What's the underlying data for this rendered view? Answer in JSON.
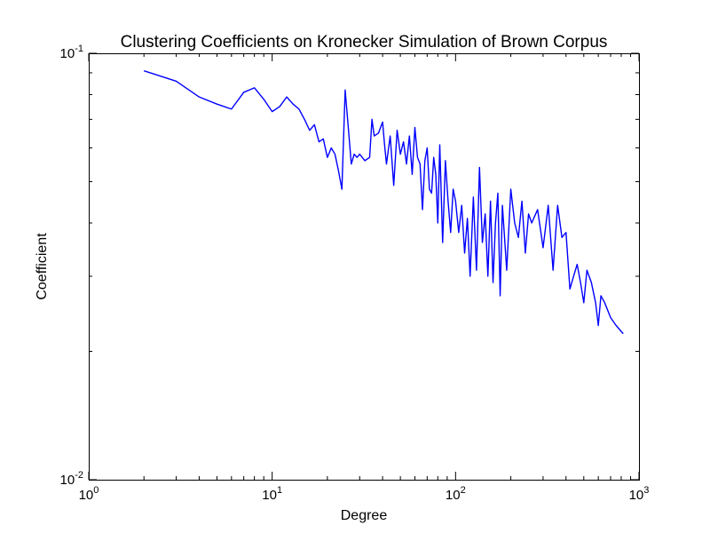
{
  "chart_data": {
    "type": "line",
    "title": "Clustering Coefficients on Kronecker Simulation of Brown Corpus",
    "xlabel": "Degree",
    "ylabel": "Coefficient",
    "xscale": "log",
    "yscale": "log",
    "xlim": [
      1,
      1000
    ],
    "ylim": [
      0.01,
      0.1
    ],
    "xticks": [
      {
        "value": 1,
        "base": "10",
        "exp": "0"
      },
      {
        "value": 10,
        "base": "10",
        "exp": "1"
      },
      {
        "value": 100,
        "base": "10",
        "exp": "2"
      },
      {
        "value": 1000,
        "base": "10",
        "exp": "3"
      }
    ],
    "yticks": [
      {
        "value": 0.01,
        "base": "10",
        "exp": "-2"
      },
      {
        "value": 0.1,
        "base": "10",
        "exp": "-1"
      }
    ],
    "grid": false,
    "legend": false,
    "series": [
      {
        "color": "#0000ff",
        "x": [
          2,
          3,
          4,
          5,
          6,
          7,
          8,
          9,
          10,
          11,
          12,
          13,
          14,
          15,
          16,
          17,
          18,
          19,
          20,
          21,
          22,
          23,
          24,
          25,
          26,
          27,
          28,
          29,
          30,
          32,
          34,
          35,
          36,
          38,
          40,
          41,
          42,
          44,
          46,
          48,
          50,
          52,
          54,
          56,
          58,
          60,
          62,
          64,
          66,
          68,
          70,
          72,
          74,
          76,
          78,
          80,
          82,
          85,
          88,
          91,
          94,
          97,
          100,
          104,
          108,
          112,
          116,
          120,
          125,
          130,
          135,
          140,
          145,
          150,
          155,
          160,
          165,
          170,
          175,
          180,
          190,
          200,
          210,
          220,
          230,
          240,
          250,
          260,
          280,
          300,
          320,
          340,
          360,
          380,
          400,
          420,
          440,
          460,
          480,
          500,
          520,
          550,
          580,
          600,
          620,
          650,
          700,
          750,
          820
        ],
        "y": [
          0.091,
          0.086,
          0.079,
          0.076,
          0.074,
          0.081,
          0.083,
          0.078,
          0.073,
          0.075,
          0.079,
          0.076,
          0.074,
          0.07,
          0.066,
          0.068,
          0.062,
          0.063,
          0.057,
          0.06,
          0.058,
          0.053,
          0.048,
          0.082,
          0.067,
          0.055,
          0.058,
          0.057,
          0.058,
          0.056,
          0.057,
          0.07,
          0.064,
          0.065,
          0.069,
          0.061,
          0.055,
          0.064,
          0.049,
          0.066,
          0.058,
          0.062,
          0.055,
          0.064,
          0.052,
          0.067,
          0.057,
          0.055,
          0.043,
          0.056,
          0.06,
          0.048,
          0.047,
          0.057,
          0.052,
          0.04,
          0.061,
          0.036,
          0.056,
          0.045,
          0.038,
          0.048,
          0.045,
          0.038,
          0.044,
          0.034,
          0.041,
          0.03,
          0.046,
          0.031,
          0.054,
          0.036,
          0.042,
          0.03,
          0.045,
          0.029,
          0.04,
          0.047,
          0.027,
          0.044,
          0.031,
          0.048,
          0.04,
          0.037,
          0.045,
          0.034,
          0.042,
          0.04,
          0.043,
          0.035,
          0.044,
          0.031,
          0.044,
          0.037,
          0.038,
          0.028,
          0.03,
          0.032,
          0.029,
          0.026,
          0.031,
          0.029,
          0.026,
          0.023,
          0.027,
          0.026,
          0.024,
          0.023,
          0.022
        ]
      }
    ]
  }
}
